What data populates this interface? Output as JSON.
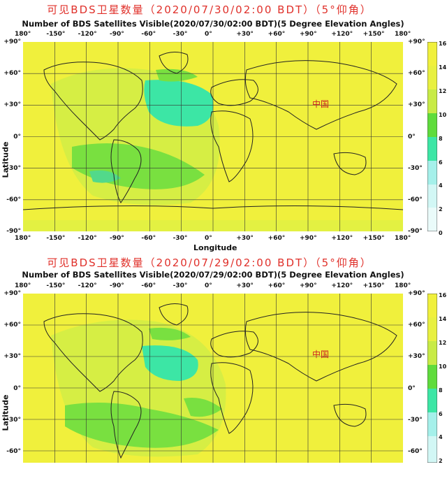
{
  "panels": [
    {
      "cn_title": "可见BDS卫星数量（2020/07/30/02:00 BDT）（5°仰角）",
      "en_title": "Number of BDS Satellites Visible(2020/07/30/02:00 BDT)(5 Degree Elevation Angles)",
      "x_label": "Longitude",
      "y_label": "Latitude",
      "china_label": "中国",
      "lon_ticks": [
        "180°",
        "-150°",
        "-120°",
        "-90°",
        "-60°",
        "-30°",
        "0°",
        "+30°",
        "+60°",
        "+90°",
        "+120°",
        "+150°",
        "180°"
      ],
      "lat_ticks_left": [
        "+90°",
        "+60°",
        "+30°",
        "0°",
        "-30°",
        "-60°",
        "-90°"
      ],
      "lat_ticks_right": [
        "+90°",
        "+60°",
        "+30°",
        "0°",
        "-30°",
        "-60°",
        "-90°"
      ],
      "colorbar_ticks": [
        "16",
        "14",
        "12",
        "10",
        "8",
        "6",
        "4",
        "2",
        "0"
      ]
    },
    {
      "cn_title": "可见BDS卫星数量（2020/07/29/02:00 BDT）（5°仰角）",
      "en_title": "Number of BDS Satellites Visible(2020/07/29/02:00 BDT)(5 Degree Elevation Angles)",
      "x_label": "",
      "y_label": "Latitude",
      "china_label": "中国",
      "lon_ticks": [
        "180°",
        "-150°",
        "-120°",
        "-90°",
        "-60°",
        "-30°",
        "0°",
        "+30°",
        "+60°",
        "+90°",
        "+120°",
        "+150°",
        "180°"
      ],
      "lat_ticks_left": [
        "+90°",
        "+60°",
        "+30°",
        "0°",
        "-30°",
        "-60°"
      ],
      "lat_ticks_right": [
        "+90°",
        "+60°",
        "+30°",
        "0°",
        "-30°",
        "-60°"
      ],
      "colorbar_ticks": [
        "16",
        "14",
        "12",
        "10",
        "8",
        "6",
        "4",
        "2"
      ]
    }
  ],
  "colors": {
    "high": "#f0f03c",
    "mid": "#c8eb46",
    "low": "#5fdc3c",
    "lower": "#3ce6a5",
    "coast": "#222222"
  }
}
